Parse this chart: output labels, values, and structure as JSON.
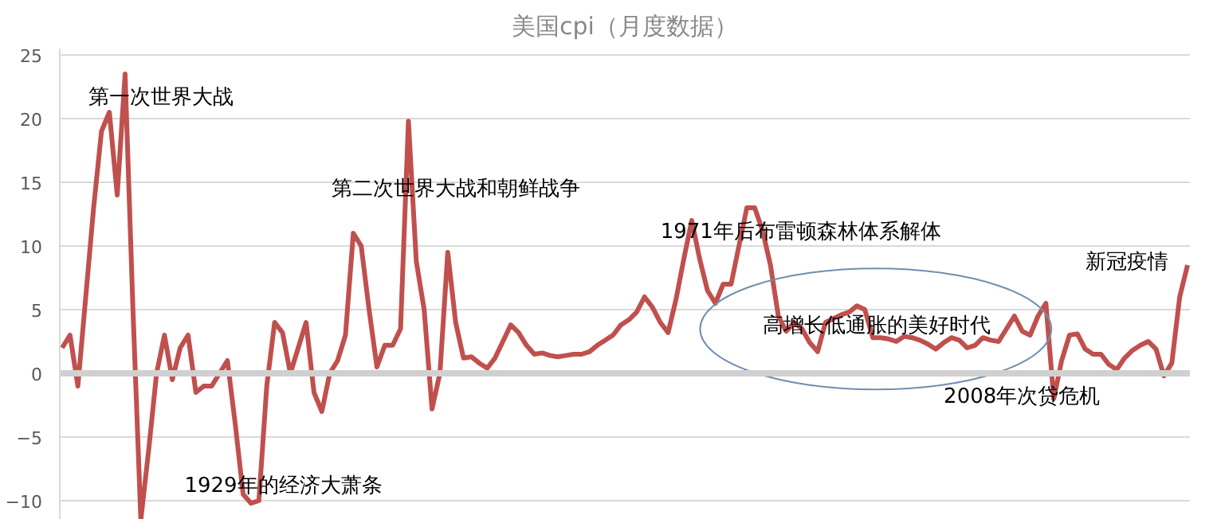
{
  "chart_data": {
    "type": "line",
    "title": "美国cpi（月度数据）",
    "categories": [
      null,
      null,
      null,
      null,
      null,
      null,
      null,
      null,
      null,
      null,
      null,
      null,
      null,
      null,
      null,
      null,
      null,
      null,
      null,
      null,
      null,
      null,
      null,
      null,
      null,
      null,
      null,
      null,
      null,
      null,
      null,
      null,
      null,
      null,
      null,
      null,
      null,
      null,
      null,
      null,
      null,
      null,
      null,
      null,
      null,
      null,
      null,
      null,
      null,
      null,
      null,
      null,
      null,
      null,
      null,
      null,
      null,
      null,
      null,
      null,
      null,
      null,
      null,
      null,
      null,
      null,
      null,
      null,
      null,
      null,
      null,
      null,
      null,
      null,
      null,
      null,
      null,
      null,
      null,
      null,
      null,
      null,
      null,
      null,
      null,
      null,
      null,
      null,
      null,
      null,
      null,
      null,
      null,
      null,
      null,
      null,
      null,
      null,
      null,
      null,
      null,
      null,
      null,
      null,
      null,
      null,
      null,
      null,
      null,
      null,
      null,
      null,
      null,
      null,
      null,
      null,
      null,
      null,
      null,
      null,
      null,
      null,
      null,
      null,
      null,
      null,
      null,
      null,
      null,
      null,
      null,
      null,
      null,
      null,
      null,
      null,
      null,
      null,
      null,
      null,
      null,
      null,
      null,
      null
    ],
    "series": [
      {
        "color": "#c0504d",
        "values": [
          2,
          3,
          -1,
          6,
          13,
          19,
          20.5,
          14,
          23.5,
          5,
          -11.5,
          -6,
          0,
          3,
          -0.5,
          2,
          3,
          -1.5,
          -1,
          -1,
          0,
          1,
          -4,
          -9.5,
          -10.2,
          -10,
          -1,
          4,
          3.2,
          0,
          2,
          4,
          -1.5,
          -3,
          0,
          1,
          3,
          11,
          10,
          5,
          0.5,
          2.2,
          2.2,
          3.5,
          19.8,
          8.8,
          5,
          -2.8,
          0,
          9.5,
          4,
          1.2,
          1.3,
          0.8,
          0.4,
          1.2,
          2.5,
          3.8,
          3.2,
          2.2,
          1.5,
          1.6,
          1.4,
          1.3,
          1.4,
          1.5,
          1.5,
          1.7,
          2.2,
          2.6,
          3,
          3.8,
          4.2,
          4.8,
          6,
          5.2,
          4,
          3.2,
          5.8,
          9,
          12,
          9,
          6.5,
          5.5,
          7,
          7,
          10,
          13,
          13,
          11.2,
          8.5,
          4.5,
          3.3,
          4,
          3.5,
          2.4,
          1.7,
          4,
          4.3,
          4.6,
          4.8,
          5.3,
          5,
          2.8,
          2.8,
          2.7,
          2.5,
          2.9,
          2.8,
          2.6,
          2.3,
          1.9,
          2.4,
          2.8,
          2.6,
          2,
          2.2,
          2.8,
          2.6,
          2.5,
          3.5,
          4.5,
          3.3,
          3,
          4.5,
          5.5,
          -2,
          1,
          3,
          3.1,
          1.9,
          1.5,
          1.5,
          0.7,
          0.3,
          1.2,
          1.8,
          2.2,
          2.5,
          1.9,
          -0.2,
          0.8,
          6,
          8.5
        ]
      }
    ],
    "ylim": [
      -11.5,
      25.5
    ],
    "yticks": [
      -10,
      -5,
      0,
      5,
      10,
      15,
      20,
      25
    ],
    "grid": "y",
    "tick_labels": "y",
    "annotations": [
      "第一次世界大战",
      "第二次世界大战和朝鲜战争",
      "1971年后布雷顿森林体系解体",
      "高增长低通胀的美好时代",
      "2008年次贷危机",
      "新冠疫情",
      "1929年的经济大萧条"
    ]
  }
}
